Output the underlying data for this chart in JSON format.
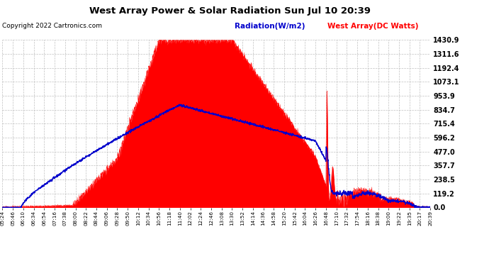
{
  "title": "West Array Power & Solar Radiation Sun Jul 10 20:39",
  "copyright": "Copyright 2022 Cartronics.com",
  "legend_radiation": "Radiation(W/m2)",
  "legend_west_array": "West Array(DC Watts)",
  "background_color": "#ffffff",
  "plot_bg_color": "#ffffff",
  "grid_color": "#c0c0c0",
  "red_color": "#ff0000",
  "blue_color": "#0000cc",
  "y_max": 1430.9,
  "y_min": 0.0,
  "y_ticks": [
    0.0,
    119.2,
    238.5,
    357.7,
    477.0,
    596.2,
    715.4,
    834.7,
    953.9,
    1073.1,
    1192.4,
    1311.6,
    1430.9
  ],
  "x_labels": [
    "05:24",
    "05:46",
    "06:10",
    "06:34",
    "06:54",
    "07:16",
    "07:38",
    "08:00",
    "08:22",
    "08:44",
    "09:06",
    "09:28",
    "09:50",
    "10:12",
    "10:34",
    "10:56",
    "11:18",
    "11:40",
    "12:02",
    "12:24",
    "12:46",
    "13:08",
    "13:30",
    "13:52",
    "14:14",
    "14:36",
    "14:58",
    "15:20",
    "15:42",
    "16:04",
    "16:26",
    "16:48",
    "17:10",
    "17:32",
    "17:54",
    "18:16",
    "18:38",
    "19:00",
    "19:22",
    "19:35",
    "20:17",
    "20:39"
  ]
}
